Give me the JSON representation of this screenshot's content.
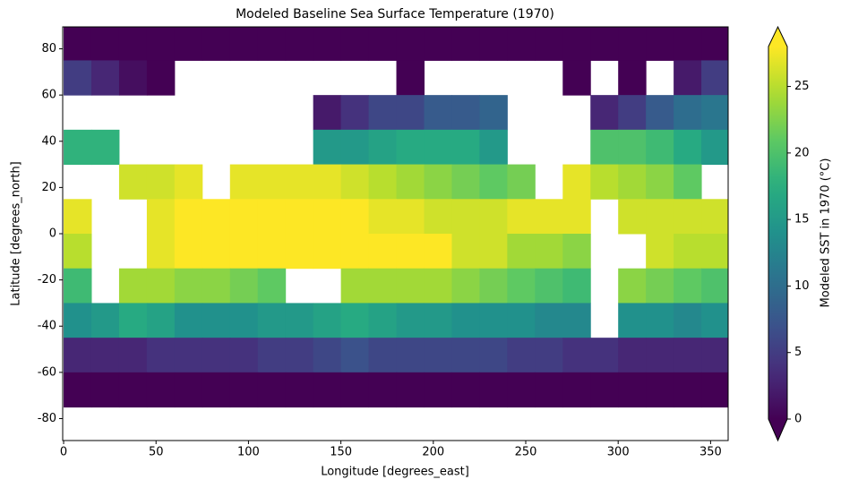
{
  "chart_data": {
    "type": "heatmap",
    "title": "Modeled Baseline Sea Surface Temperature (1970)",
    "xlabel": "Longitude [degrees_east]",
    "ylabel": "Latitude [degrees_north]",
    "colorbar_label": "Modeled SST in 1970 (°C)",
    "colormap": "viridis",
    "clim": [
      0,
      28
    ],
    "cticks": [
      0,
      5,
      10,
      15,
      20,
      25
    ],
    "xlim": [
      -0.5,
      359.5
    ],
    "ylim": [
      -89.5,
      89.5
    ],
    "xticks": [
      0,
      50,
      100,
      150,
      200,
      250,
      300,
      350
    ],
    "yticks": [
      -80,
      -60,
      -40,
      -20,
      0,
      20,
      40,
      60,
      80
    ],
    "x": [
      7.5,
      22.5,
      37.5,
      52.5,
      67.5,
      82.5,
      97.5,
      112.5,
      127.5,
      142.5,
      157.5,
      172.5,
      187.5,
      202.5,
      217.5,
      232.5,
      247.5,
      262.5,
      277.5,
      292.5,
      307.5,
      322.5,
      337.5,
      352.5
    ],
    "y": [
      82.5,
      67.5,
      52.5,
      37.5,
      22.5,
      7.5,
      -7.5,
      -22.5,
      -37.5,
      -52.5,
      -67.5,
      -82.5
    ],
    "values": [
      [
        -1,
        -1,
        -1,
        -1,
        -1,
        -1,
        -1,
        -1,
        -1,
        -1,
        -1,
        -1,
        -1,
        -1,
        -1,
        -1,
        -1,
        -1,
        -1,
        -1,
        -1,
        -1,
        -1,
        -1
      ],
      [
        5,
        3,
        1,
        0,
        null,
        null,
        null,
        null,
        null,
        null,
        null,
        null,
        0,
        null,
        null,
        null,
        null,
        null,
        0,
        null,
        0,
        null,
        2,
        5
      ],
      [
        null,
        null,
        null,
        null,
        null,
        null,
        null,
        null,
        null,
        2,
        4,
        6,
        6,
        8,
        8,
        9,
        null,
        null,
        null,
        3,
        5,
        8,
        10,
        11
      ],
      [
        18,
        18,
        null,
        null,
        null,
        null,
        null,
        null,
        null,
        15,
        15,
        16,
        17,
        17,
        17,
        15,
        null,
        null,
        null,
        20,
        20,
        19,
        17,
        15
      ],
      [
        null,
        null,
        26,
        26,
        27,
        null,
        27,
        27,
        27,
        27,
        26,
        25,
        24,
        23,
        22,
        21,
        22,
        null,
        27,
        25,
        24,
        23,
        21,
        null
      ],
      [
        27,
        null,
        null,
        27,
        28,
        28,
        28,
        28,
        28,
        28,
        28,
        27,
        27,
        26,
        26,
        26,
        27,
        27,
        27,
        null,
        26,
        26,
        26,
        26
      ],
      [
        25,
        null,
        null,
        27,
        28,
        28,
        28,
        28,
        28,
        28,
        28,
        28,
        28,
        28,
        26,
        26,
        24,
        24,
        23,
        null,
        null,
        26,
        25,
        25
      ],
      [
        19,
        null,
        24,
        24,
        23,
        23,
        22,
        21,
        null,
        null,
        24,
        24,
        24,
        24,
        23,
        22,
        21,
        20,
        19,
        null,
        23,
        22,
        21,
        20
      ],
      [
        14,
        15,
        17,
        16,
        14,
        14,
        14,
        15,
        15,
        16,
        17,
        16,
        15,
        15,
        14,
        14,
        14,
        13,
        13,
        null,
        14,
        14,
        13,
        14
      ],
      [
        3,
        3,
        3,
        4,
        4,
        4,
        4,
        5,
        5,
        6,
        7,
        6,
        6,
        6,
        6,
        6,
        5,
        5,
        4,
        4,
        3,
        3,
        3,
        3
      ],
      [
        -1,
        -1,
        -1,
        -1,
        -1,
        -1,
        -1,
        -1,
        -1,
        -1,
        -1,
        -1,
        -1,
        -1,
        -1,
        -1,
        -1,
        -1,
        -1,
        -1,
        -1,
        -1,
        -1,
        -1
      ],
      [
        null,
        null,
        null,
        null,
        null,
        null,
        null,
        null,
        null,
        null,
        null,
        null,
        null,
        null,
        null,
        null,
        null,
        null,
        null,
        null,
        null,
        null,
        null,
        null
      ]
    ]
  }
}
